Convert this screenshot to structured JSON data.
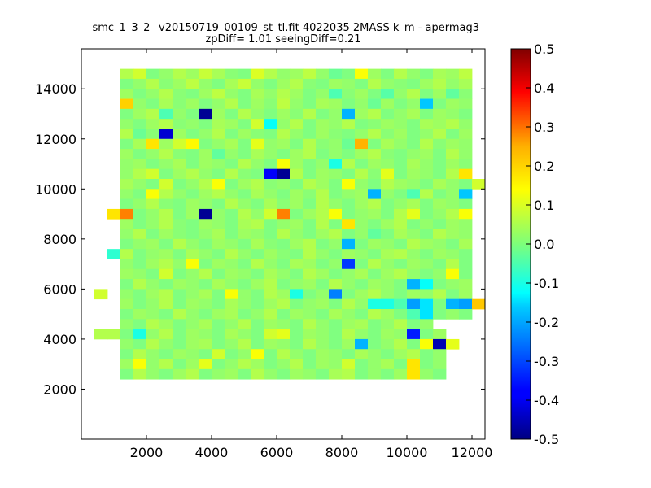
{
  "chart_data": {
    "type": "heatmap",
    "title": "_smc_1_3_2_ v20150719_00109_st_tl.fit 4022035 2MASS k_m - apermag3",
    "subtitle": "zpDiff= 1.01 seeingDiff=0.21",
    "xlabel": "",
    "ylabel": "",
    "xlim": [
      0,
      12400
    ],
    "ylim": [
      0,
      15600
    ],
    "xticks": [
      "2000",
      "4000",
      "6000",
      "8000",
      "10000",
      "12000"
    ],
    "yticks": [
      "2000",
      "4000",
      "6000",
      "8000",
      "10000",
      "12000",
      "14000"
    ],
    "grid": false,
    "colormap": "jet",
    "colorbar": {
      "range": [
        -0.5,
        0.5
      ],
      "ticks": [
        "0.5",
        "0.4",
        "0.3",
        "0.2",
        "0.1",
        "0.0",
        "-0.1",
        "-0.2",
        "-0.3",
        "-0.4",
        "-0.5"
      ]
    },
    "bin_size": 400,
    "note_rows": "rows[0] is the topmost row (y 15200-15600); each row lists values for x bins starting at x=0; null = empty bin",
    "rows": [
      [
        null,
        null,
        null,
        null,
        null,
        null,
        null,
        null,
        null,
        null,
        null,
        null,
        null,
        null,
        null,
        null,
        null,
        null,
        null,
        null,
        null,
        null,
        null,
        null,
        null,
        null,
        null,
        null,
        null,
        null,
        null
      ],
      [
        null,
        null,
        null,
        null,
        null,
        null,
        null,
        null,
        null,
        null,
        null,
        null,
        null,
        null,
        null,
        null,
        null,
        null,
        null,
        null,
        null,
        null,
        null,
        null,
        null,
        null,
        null,
        null,
        null,
        null,
        null
      ],
      [
        null,
        null,
        null,
        0.05,
        0.08,
        0.0,
        0.02,
        0.05,
        0.03,
        0.07,
        0.04,
        0.01,
        0.0,
        0.09,
        0.05,
        0.02,
        0.03,
        0.06,
        0.02,
        -0.02,
        0.0,
        0.12,
        0.03,
        0.0,
        0.05,
        0.02,
        0.0,
        0.04,
        0.03,
        0.06,
        null
      ],
      [
        null,
        null,
        null,
        0.0,
        0.02,
        0.05,
        0.01,
        0.03,
        0.06,
        0.02,
        0.0,
        0.04,
        0.07,
        0.02,
        0.0,
        0.03,
        0.05,
        0.01,
        0.0,
        0.03,
        0.02,
        0.0,
        0.05,
        0.02,
        0.01,
        0.0,
        0.03,
        0.05,
        0.02,
        0.04,
        null
      ],
      [
        null,
        null,
        null,
        0.03,
        0.0,
        0.02,
        0.05,
        0.01,
        0.0,
        0.03,
        0.06,
        0.02,
        0.0,
        0.04,
        0.02,
        0.05,
        0.03,
        0.0,
        0.02,
        -0.05,
        0.01,
        0.03,
        0.0,
        -0.04,
        0.02,
        0.05,
        0.0,
        0.03,
        -0.03,
        0.01,
        null
      ],
      [
        null,
        null,
        null,
        0.17,
        0.02,
        0.0,
        0.04,
        0.01,
        0.03,
        0.0,
        0.02,
        0.05,
        0.0,
        0.03,
        0.01,
        0.06,
        0.02,
        0.0,
        0.04,
        0.03,
        0.0,
        0.02,
        -0.02,
        0.03,
        0.0,
        0.02,
        -0.18,
        0.0,
        0.03,
        0.02,
        null
      ],
      [
        null,
        null,
        null,
        0.0,
        0.03,
        0.05,
        -0.05,
        0.02,
        0.0,
        -0.48,
        0.03,
        0.0,
        0.05,
        0.02,
        0.0,
        0.03,
        0.01,
        0.05,
        0.0,
        0.02,
        -0.2,
        0.03,
        0.05,
        0.0,
        0.02,
        0.04,
        0.0,
        0.03,
        0.02,
        0.0,
        null
      ],
      [
        null,
        null,
        null,
        0.02,
        0.0,
        0.03,
        0.05,
        0.01,
        0.02,
        0.0,
        0.04,
        0.03,
        0.0,
        0.08,
        -0.12,
        0.02,
        0.05,
        0.0,
        0.03,
        0.02,
        0.05,
        0.0,
        0.01,
        0.03,
        0.02,
        0.0,
        0.04,
        0.03,
        0.05,
        0.02,
        null
      ],
      [
        null,
        null,
        null,
        0.05,
        -0.02,
        0.01,
        -0.42,
        0.03,
        0.0,
        0.02,
        0.05,
        0.0,
        0.03,
        0.01,
        0.0,
        0.05,
        0.02,
        0.0,
        0.03,
        0.01,
        0.0,
        0.02,
        0.05,
        0.01,
        0.03,
        0.0,
        0.02,
        0.05,
        0.0,
        0.03,
        null
      ],
      [
        null,
        null,
        null,
        0.0,
        0.04,
        0.15,
        0.03,
        0.08,
        0.13,
        0.0,
        0.02,
        0.04,
        0.0,
        0.1,
        0.02,
        0.03,
        0.0,
        0.05,
        0.01,
        0.02,
        -0.02,
        0.2,
        0.0,
        0.04,
        0.02,
        0.0,
        0.05,
        0.01,
        0.03,
        0.02,
        null
      ],
      [
        null,
        null,
        null,
        0.03,
        0.0,
        0.02,
        0.05,
        0.01,
        0.0,
        0.03,
        -0.03,
        0.02,
        0.0,
        0.04,
        0.02,
        0.0,
        0.03,
        0.05,
        0.0,
        0.02,
        0.0,
        0.03,
        0.05,
        0.01,
        0.0,
        0.02,
        0.03,
        0.0,
        0.05,
        0.02,
        null
      ],
      [
        null,
        null,
        null,
        0.02,
        0.03,
        0.0,
        0.02,
        0.04,
        0.0,
        0.03,
        0.02,
        0.0,
        0.05,
        0.02,
        0.0,
        0.12,
        0.03,
        0.0,
        0.02,
        -0.1,
        0.05,
        0.0,
        0.03,
        0.02,
        0.0,
        0.04,
        0.02,
        0.0,
        0.03,
        0.01,
        null
      ],
      [
        null,
        null,
        null,
        0.02,
        0.05,
        0.08,
        0.0,
        0.03,
        0.05,
        0.02,
        0.0,
        0.05,
        0.01,
        0.0,
        -0.38,
        -0.48,
        0.05,
        0.0,
        0.03,
        0.02,
        0.0,
        0.05,
        0.01,
        0.1,
        0.0,
        0.03,
        0.02,
        0.0,
        0.05,
        0.15,
        null
      ],
      [
        null,
        null,
        null,
        0.04,
        0.02,
        0.0,
        0.08,
        0.0,
        0.02,
        0.05,
        0.12,
        0.0,
        0.03,
        0.05,
        0.01,
        0.02,
        0.0,
        0.05,
        0.03,
        0.0,
        0.12,
        0.02,
        0.0,
        0.05,
        0.03,
        0.02,
        0.0,
        0.04,
        0.02,
        0.0,
        0.08
      ],
      [
        null,
        null,
        null,
        0.02,
        0.0,
        0.12,
        0.05,
        0.02,
        0.0,
        0.03,
        0.05,
        0.02,
        0.0,
        0.04,
        0.02,
        0.0,
        0.03,
        0.01,
        0.05,
        0.0,
        0.02,
        0.03,
        -0.2,
        0.02,
        0.0,
        -0.05,
        0.05,
        0.0,
        0.02,
        -0.18,
        null
      ],
      [
        null,
        null,
        null,
        0.0,
        0.02,
        0.05,
        0.01,
        0.0,
        0.03,
        0.02,
        0.0,
        0.05,
        0.02,
        0.0,
        0.04,
        0.01,
        0.03,
        0.0,
        0.05,
        0.02,
        0.0,
        0.03,
        0.05,
        0.0,
        0.02,
        0.04,
        0.0,
        0.03,
        0.02,
        0.0,
        null
      ],
      [
        null,
        null,
        0.15,
        0.25,
        0.0,
        0.02,
        0.05,
        0.0,
        0.03,
        -0.48,
        0.02,
        0.0,
        0.05,
        0.02,
        0.08,
        0.25,
        0.0,
        0.03,
        0.05,
        0.12,
        0.0,
        0.02,
        0.03,
        0.0,
        0.05,
        0.1,
        0.0,
        0.02,
        0.05,
        0.12,
        null
      ],
      [
        null,
        null,
        null,
        0.03,
        0.0,
        0.02,
        0.05,
        0.01,
        0.0,
        0.03,
        0.02,
        0.0,
        0.04,
        0.05,
        0.0,
        0.02,
        0.03,
        0.0,
        0.05,
        0.0,
        0.15,
        0.02,
        0.0,
        0.03,
        0.05,
        0.0,
        0.02,
        0.0,
        0.03,
        0.02,
        null
      ],
      [
        null,
        null,
        null,
        0.02,
        0.05,
        0.0,
        0.03,
        0.01,
        0.0,
        0.02,
        0.04,
        0.0,
        0.03,
        0.02,
        0.0,
        0.05,
        0.02,
        0.0,
        0.03,
        0.05,
        0.0,
        0.02,
        -0.03,
        0.0,
        0.04,
        0.02,
        0.0,
        0.05,
        0.03,
        0.02,
        null
      ],
      [
        null,
        null,
        null,
        0.0,
        0.02,
        0.03,
        0.0,
        0.05,
        0.02,
        0.0,
        0.03,
        0.02,
        0.0,
        0.04,
        0.01,
        0.0,
        0.03,
        0.05,
        0.0,
        0.02,
        -0.2,
        0.0,
        0.03,
        0.02,
        0.0,
        0.05,
        0.03,
        0.02,
        0.0,
        0.04,
        null
      ],
      [
        null,
        null,
        -0.08,
        0.05,
        0.0,
        0.02,
        0.03,
        0.0,
        0.04,
        0.02,
        0.0,
        0.05,
        0.02,
        0.0,
        0.03,
        0.01,
        0.0,
        0.05,
        0.02,
        0.0,
        0.03,
        0.02,
        0.0,
        0.04,
        0.05,
        0.02,
        0.0,
        0.03,
        0.02,
        0.0,
        null
      ],
      [
        null,
        null,
        null,
        0.02,
        0.0,
        0.03,
        0.05,
        0.02,
        0.12,
        0.0,
        0.03,
        0.02,
        0.0,
        0.05,
        0.02,
        0.0,
        0.04,
        0.03,
        0.0,
        0.02,
        -0.32,
        0.0,
        0.05,
        0.02,
        0.0,
        0.03,
        0.02,
        0.0,
        0.05,
        0.0,
        null
      ],
      [
        null,
        null,
        null,
        0.03,
        0.02,
        0.0,
        0.08,
        0.0,
        0.02,
        0.05,
        0.0,
        0.03,
        0.02,
        0.0,
        0.04,
        0.02,
        0.0,
        0.05,
        0.03,
        0.0,
        0.02,
        0.04,
        0.0,
        0.03,
        0.05,
        0.02,
        0.0,
        0.02,
        0.12,
        0.0,
        null
      ],
      [
        null,
        null,
        null,
        0.0,
        0.05,
        0.02,
        0.0,
        0.03,
        0.02,
        0.0,
        0.04,
        0.02,
        0.0,
        0.03,
        0.05,
        0.0,
        0.02,
        0.03,
        0.0,
        0.05,
        0.02,
        0.0,
        0.03,
        0.02,
        0.0,
        -0.2,
        -0.12,
        0.0,
        0.02,
        0.03,
        null
      ],
      [
        null,
        0.08,
        null,
        0.02,
        0.0,
        0.03,
        0.05,
        0.0,
        0.02,
        0.04,
        0.0,
        0.12,
        0.02,
        0.0,
        0.05,
        0.03,
        -0.1,
        0.0,
        0.02,
        -0.25,
        0.0,
        0.03,
        0.05,
        0.02,
        0.0,
        0.03,
        0.02,
        0.05,
        0.0,
        0.03,
        null
      ],
      [
        null,
        null,
        null,
        0.03,
        0.0,
        0.02,
        0.05,
        0.0,
        0.03,
        0.02,
        0.0,
        0.04,
        0.02,
        0.0,
        0.03,
        0.05,
        0.0,
        0.02,
        0.03,
        0.0,
        0.05,
        0.02,
        -0.1,
        -0.1,
        -0.05,
        -0.22,
        -0.15,
        0.0,
        -0.2,
        -0.22,
        0.18
      ],
      [
        null,
        null,
        null,
        0.0,
        0.03,
        0.02,
        0.0,
        0.05,
        0.02,
        0.0,
        0.03,
        0.04,
        0.0,
        0.02,
        0.05,
        0.0,
        0.03,
        0.02,
        0.0,
        0.04,
        0.02,
        0.0,
        0.05,
        0.03,
        0.0,
        -0.05,
        -0.15,
        0.0,
        0.02,
        0.0,
        null
      ],
      [
        null,
        null,
        null,
        0.02,
        0.0,
        0.05,
        0.03,
        0.0,
        0.02,
        0.04,
        0.0,
        0.02,
        0.05,
        0.0,
        0.03,
        0.02,
        0.0,
        0.05,
        0.02,
        0.0,
        0.03,
        0.04,
        0.0,
        0.02,
        0.05,
        0.0,
        0.02,
        null,
        null,
        null,
        null
      ],
      [
        null,
        0.05,
        0.05,
        0.0,
        -0.1,
        0.02,
        0.05,
        0.0,
        0.03,
        0.02,
        0.0,
        0.04,
        0.02,
        0.0,
        0.08,
        0.1,
        0.0,
        0.03,
        0.02,
        0.0,
        0.05,
        0.02,
        0.0,
        0.03,
        0.02,
        -0.35,
        0.0,
        0.03,
        null,
        null,
        null
      ],
      [
        null,
        null,
        null,
        0.02,
        0.0,
        0.05,
        0.02,
        0.0,
        0.03,
        0.04,
        0.0,
        0.02,
        0.05,
        0.0,
        0.03,
        0.02,
        0.0,
        0.05,
        0.02,
        0.0,
        0.03,
        -0.2,
        0.0,
        0.02,
        0.05,
        0.0,
        0.12,
        -0.45,
        0.1,
        null,
        null
      ],
      [
        null,
        null,
        null,
        0.0,
        0.05,
        0.02,
        0.0,
        0.03,
        0.02,
        0.0,
        0.08,
        0.0,
        0.02,
        0.12,
        0.0,
        0.05,
        0.02,
        0.0,
        0.03,
        0.02,
        0.0,
        0.04,
        0.02,
        0.0,
        0.03,
        0.05,
        0.0,
        0.02,
        null,
        null,
        null
      ],
      [
        null,
        null,
        null,
        0.03,
        0.12,
        0.02,
        0.05,
        0.0,
        0.03,
        0.1,
        0.0,
        0.02,
        0.05,
        0.03,
        0.0,
        0.02,
        0.05,
        0.0,
        0.03,
        0.02,
        0.08,
        0.0,
        0.02,
        0.04,
        0.0,
        0.15,
        0.0,
        0.02,
        null,
        null,
        null
      ],
      [
        null,
        null,
        null,
        0.0,
        0.05,
        0.02,
        0.0,
        0.03,
        0.05,
        0.0,
        0.02,
        0.03,
        0.0,
        0.05,
        0.02,
        0.0,
        0.03,
        0.02,
        0.0,
        0.04,
        0.05,
        0.0,
        0.02,
        0.0,
        0.03,
        0.15,
        0.02,
        0.0,
        null,
        null,
        null
      ],
      [
        null,
        null,
        null,
        null,
        null,
        null,
        null,
        null,
        null,
        null,
        null,
        null,
        null,
        null,
        null,
        null,
        null,
        null,
        null,
        null,
        null,
        null,
        null,
        null,
        null,
        null,
        null,
        null,
        null,
        null,
        null
      ],
      [
        null,
        null,
        null,
        null,
        null,
        null,
        null,
        null,
        null,
        null,
        null,
        null,
        null,
        null,
        null,
        null,
        null,
        null,
        null,
        null,
        null,
        null,
        null,
        null,
        null,
        null,
        null,
        null,
        null,
        null,
        null
      ],
      [
        null,
        null,
        null,
        null,
        null,
        null,
        null,
        null,
        null,
        null,
        null,
        null,
        null,
        null,
        null,
        null,
        null,
        null,
        null,
        null,
        null,
        null,
        null,
        null,
        null,
        null,
        null,
        null,
        null,
        null,
        null
      ],
      [
        null,
        null,
        null,
        null,
        null,
        null,
        null,
        null,
        null,
        null,
        null,
        null,
        null,
        null,
        null,
        null,
        null,
        null,
        null,
        null,
        null,
        null,
        null,
        null,
        null,
        null,
        null,
        null,
        null,
        null,
        null
      ],
      [
        null,
        null,
        null,
        null,
        null,
        null,
        null,
        null,
        null,
        null,
        null,
        null,
        null,
        null,
        null,
        null,
        null,
        null,
        null,
        null,
        null,
        null,
        null,
        null,
        null,
        null,
        null,
        null,
        null,
        null,
        null
      ],
      [
        null,
        null,
        null,
        null,
        null,
        null,
        null,
        null,
        null,
        null,
        null,
        null,
        null,
        null,
        null,
        null,
        null,
        null,
        null,
        null,
        null,
        null,
        null,
        null,
        null,
        null,
        null,
        null,
        null,
        null,
        null
      ]
    ]
  }
}
